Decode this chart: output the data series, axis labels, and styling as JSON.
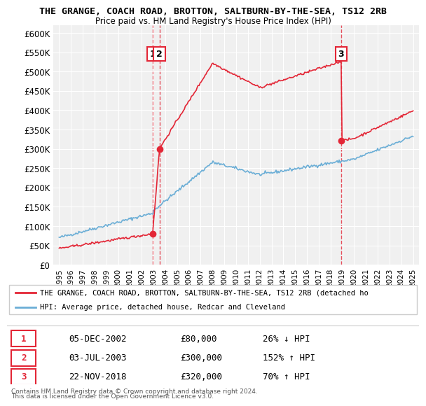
{
  "title_line1": "THE GRANGE, COACH ROAD, BROTTON, SALTBURN-BY-THE-SEA, TS12 2RB",
  "title_line2": "Price paid vs. HM Land Registry's House Price Index (HPI)",
  "ylabel": "",
  "ylim": [
    0,
    620000
  ],
  "yticks": [
    0,
    50000,
    100000,
    150000,
    200000,
    250000,
    300000,
    350000,
    400000,
    450000,
    500000,
    550000,
    600000
  ],
  "ytick_labels": [
    "£0",
    "£50K",
    "£100K",
    "£150K",
    "£200K",
    "£250K",
    "£300K",
    "£350K",
    "£400K",
    "£450K",
    "£500K",
    "£550K",
    "£600K"
  ],
  "xlim_start": 1994.5,
  "xlim_end": 2025.5,
  "sale1_x": 2002.92,
  "sale1_y": 80000,
  "sale2_x": 2003.5,
  "sale2_y": 300000,
  "sale3_x": 2018.9,
  "sale3_y": 320000,
  "hpi_color": "#6baed6",
  "price_color": "#e32636",
  "vline_color": "#e32636",
  "legend_label_price": "THE GRANGE, COACH ROAD, BROTTON, SALTBURN-BY-THE-SEA, TS12 2RB (detached ho",
  "legend_label_hpi": "HPI: Average price, detached house, Redcar and Cleveland",
  "table_rows": [
    {
      "num": "1",
      "date": "05-DEC-2002",
      "price": "£80,000",
      "pct": "26% ↓ HPI"
    },
    {
      "num": "2",
      "date": "03-JUL-2003",
      "price": "£300,000",
      "pct": "152% ↑ HPI"
    },
    {
      "num": "3",
      "date": "22-NOV-2018",
      "price": "£320,000",
      "pct": "70% ↑ HPI"
    }
  ],
  "footer_line1": "Contains HM Land Registry data © Crown copyright and database right 2024.",
  "footer_line2": "This data is licensed under the Open Government Licence v3.0.",
  "background_color": "#ffffff",
  "plot_bg_color": "#f0f0f0"
}
